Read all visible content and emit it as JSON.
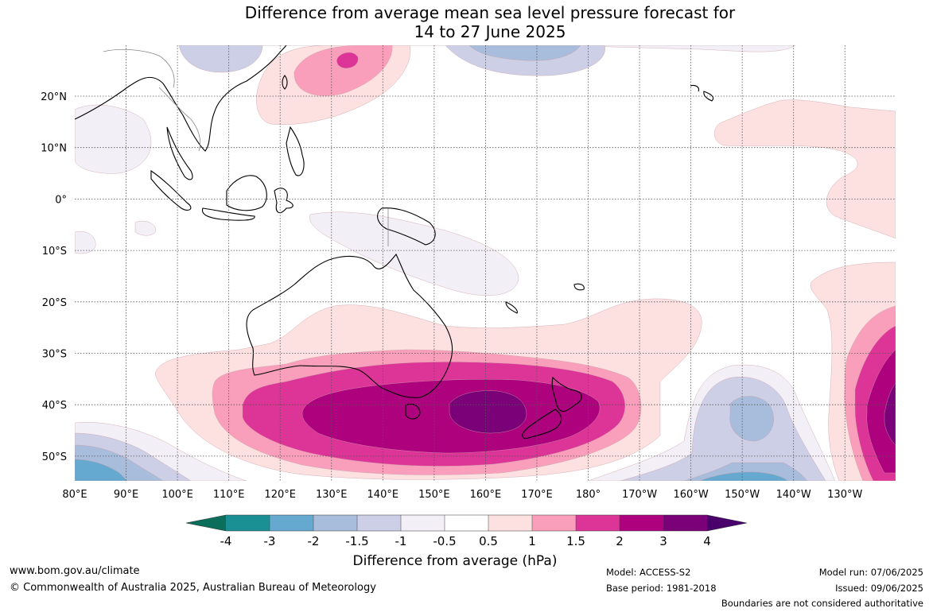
{
  "title_line1": "Difference from average mean sea level pressure forecast for",
  "title_line2": "14 to 27 June 2025",
  "lon_labels": [
    "80°E",
    "90°E",
    "100°E",
    "110°E",
    "120°E",
    "130°E",
    "140°E",
    "150°E",
    "160°E",
    "170°E",
    "180°",
    "170°W",
    "160°W",
    "150°W",
    "140°W",
    "130°W"
  ],
  "lat_labels": [
    "20°N",
    "10°N",
    "0°",
    "10°S",
    "20°S",
    "30°S",
    "40°S",
    "50°S"
  ],
  "colorbar": {
    "title": "Difference from average (hPa)",
    "ticks": [
      "-4",
      "-3",
      "-2",
      "-1.5",
      "-1",
      "-0.5",
      "0.5",
      "1",
      "1.5",
      "2",
      "3",
      "4"
    ],
    "colors": {
      "lt_m4": "#0b6e5b",
      "m4_m3": "#1a9095",
      "m3_m2": "#65a9d1",
      "m2_m15": "#a8bcdb",
      "m15_m1": "#cdcfe6",
      "m1_m05": "#f3eff6",
      "m05_05": "#ffffff",
      "p05_1": "#fde0e0",
      "p1_15": "#f99fbb",
      "p15_2": "#dd3497",
      "p2_3": "#ae017e",
      "p3_4": "#7a0177",
      "gt_4": "#49006a"
    }
  },
  "footer": {
    "website": "www.bom.gov.au/climate",
    "copyright": "© Commonwealth of Australia 2025, Australian Bureau of Meteorology",
    "model": "Model: ACCESS-S2",
    "base_period": "Base period: 1981-2018",
    "model_run": "Model run: 07/06/2025",
    "issued": "Issued: 09/06/2025",
    "disclaimer": "Boundaries are not considered authoritative"
  }
}
